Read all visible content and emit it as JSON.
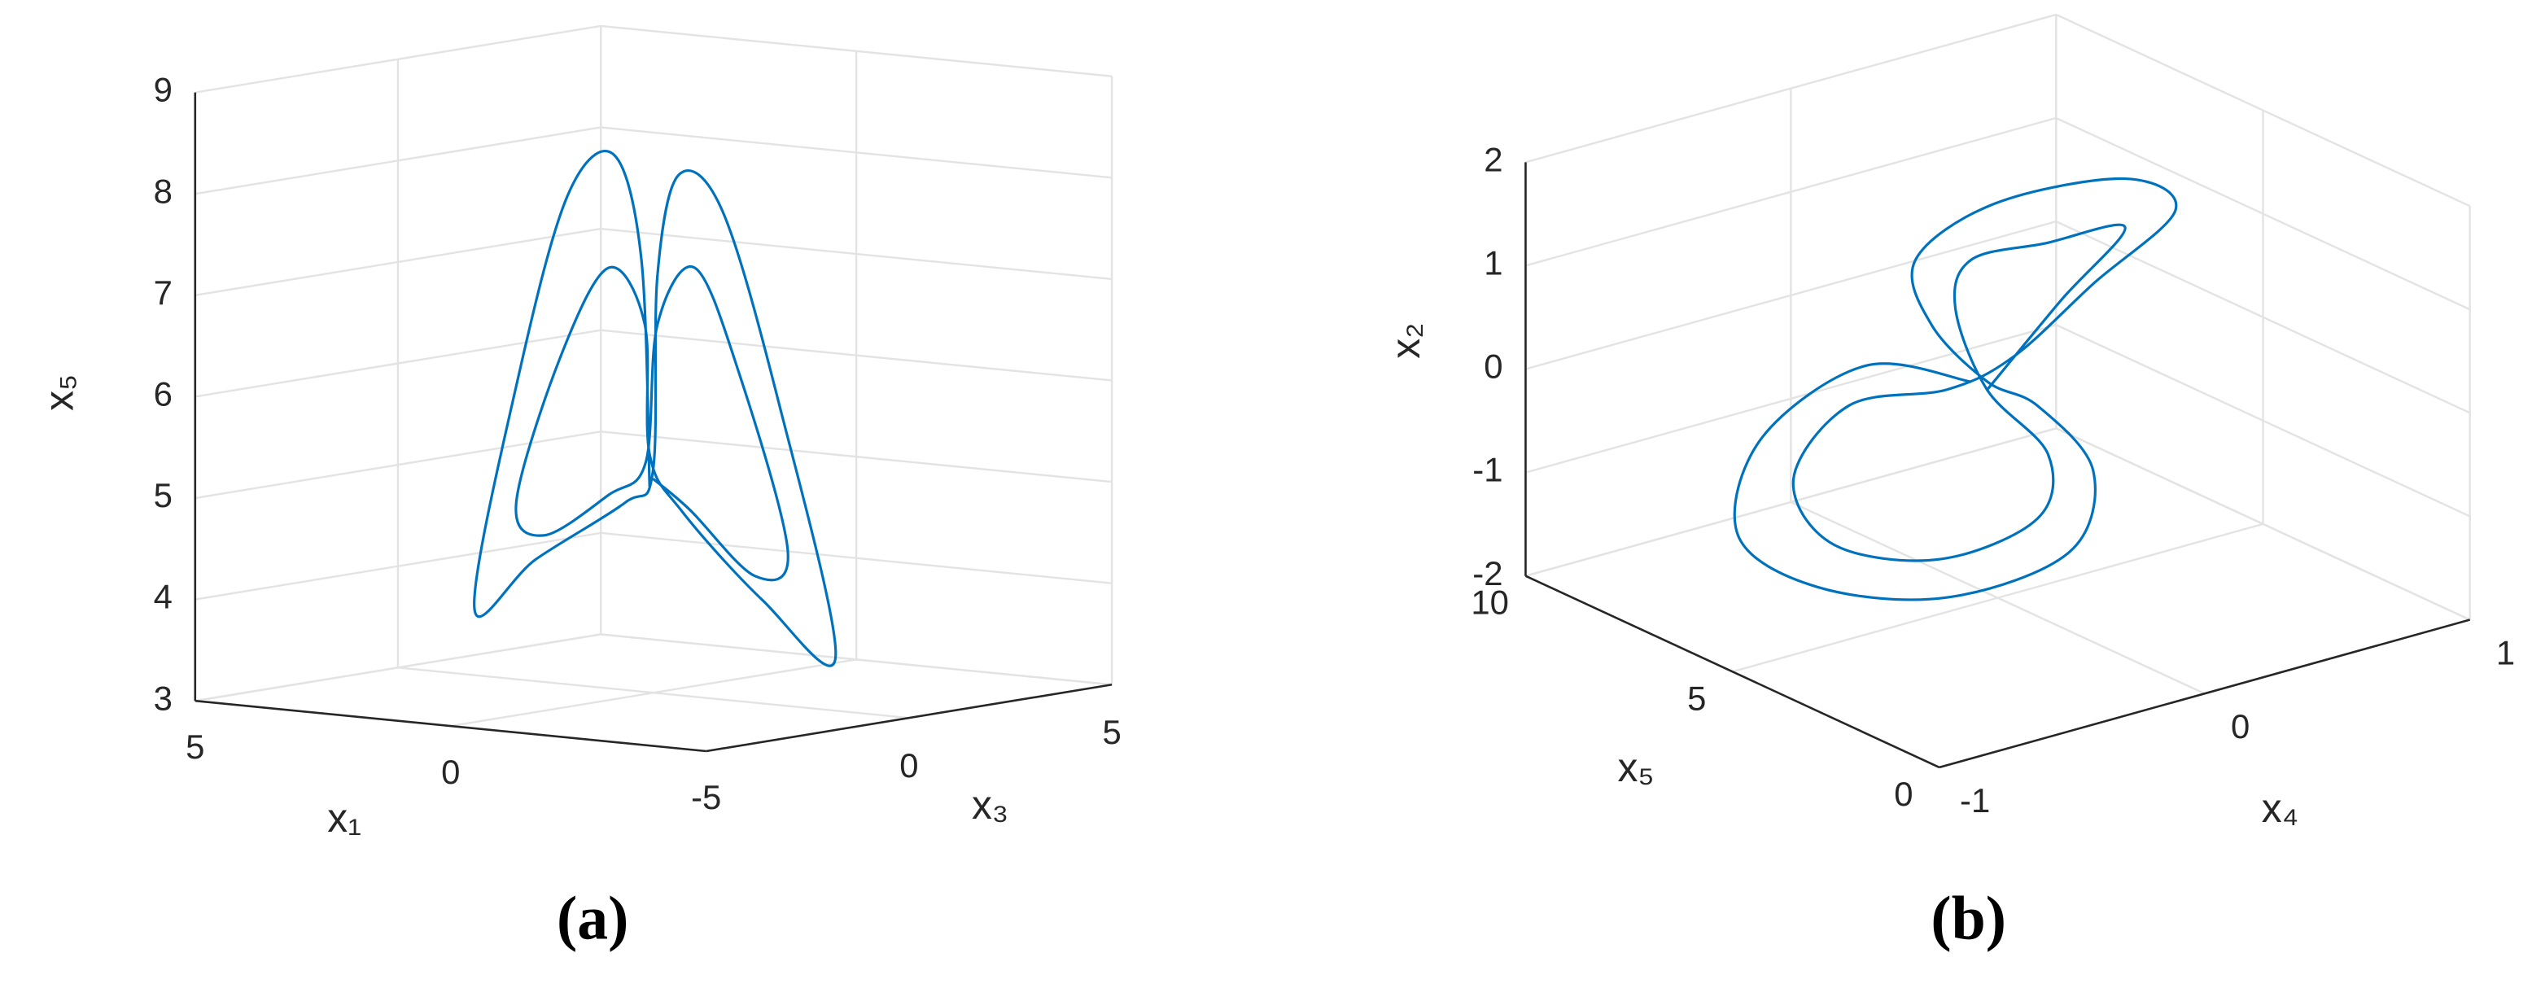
{
  "chart_data": [
    {
      "type": "line3d",
      "caption": "(a)",
      "xlabel": "x₁",
      "ylabel": "x₃",
      "zlabel": "x₅",
      "xlim": [
        -5,
        5
      ],
      "ylim": [
        -5,
        5
      ],
      "zlim": [
        3,
        9
      ],
      "xticks": [
        -5,
        0,
        5
      ],
      "yticks": [
        0,
        5
      ],
      "zticks": [
        3,
        4,
        5,
        6,
        7,
        8,
        9
      ],
      "grid": true,
      "color": "#0072bd",
      "x": [
        0.06,
        0.19,
        0.63,
        1.35,
        2.12,
        2.83,
        1.86,
        0.45,
        0.01,
        -0.06,
        -0.4,
        -1.09,
        -1.99,
        -2.88,
        -1.73,
        -0.45,
        0.06,
        0.14,
        0.71,
        1.47,
        2.17,
        1.73,
        0.71,
        0.12,
        -0.06,
        -0.65,
        -1.35,
        -2.12,
        -1.6,
        -0.58,
        0.01
      ],
      "y": [
        -0.02,
        -0.06,
        -0.19,
        -0.41,
        -0.64,
        -0.85,
        -0.56,
        -0.14,
        0.0,
        0.02,
        0.12,
        0.33,
        0.6,
        0.86,
        0.52,
        0.14,
        -0.02,
        -0.04,
        -0.21,
        -0.44,
        -0.65,
        -0.52,
        -0.21,
        -0.04,
        0.02,
        0.2,
        0.41,
        0.64,
        0.48,
        0.17,
        0.0
      ],
      "z": [
        5.03,
        7.27,
        8.29,
        7.87,
        6.09,
        3.75,
        4.26,
        4.86,
        5.19,
        7.11,
        8.12,
        7.78,
        5.89,
        3.44,
        3.96,
        4.8,
        5.35,
        6.63,
        7.17,
        6.27,
        4.81,
        4.5,
        4.93,
        5.27,
        6.63,
        7.21,
        6.19,
        4.46,
        4.2,
        4.82,
        5.11
      ]
    },
    {
      "type": "line3d",
      "caption": "(b)",
      "xlabel": "x₄",
      "ylabel": "x₅",
      "zlabel": "x₂",
      "xlim": [
        -1,
        1
      ],
      "ylim": [
        0,
        10
      ],
      "zlim": [
        -2,
        2
      ],
      "xticks": [
        -1,
        0,
        1
      ],
      "yticks": [
        0,
        5,
        10
      ],
      "zticks": [
        -2,
        -1,
        0,
        1,
        2
      ],
      "grid": true,
      "color": "#0072bd",
      "x": [
        -0.1,
        -0.5,
        -0.89,
        -0.98,
        -0.68,
        -0.19,
        0.27,
        0.36,
        0.15,
        -0.04,
        -0.25,
        -0.31,
        -0.01,
        0.48,
        0.67,
        0.36,
        0.06,
        -0.19,
        -0.56,
        -0.77,
        -0.62,
        -0.22,
        0.15,
        0.19,
        -0.04,
        -0.16,
        -0.1,
        0.18,
        0.48,
        0.24,
        -0.04
      ],
      "y": [
        5,
        5,
        5,
        5,
        5,
        5,
        5,
        5,
        5,
        5,
        5,
        5,
        5,
        5,
        5,
        5,
        5,
        5,
        5,
        5,
        5,
        5,
        5,
        5,
        5,
        5,
        5,
        5,
        5,
        5,
        5
      ],
      "z": [
        0.16,
        0.6,
        0.18,
        -0.69,
        -1.41,
        -1.86,
        -1.75,
        -1.03,
        -0.25,
        0.12,
        0.82,
        1.49,
        1.82,
        1.71,
        1.27,
        0.78,
        0.29,
        0.15,
        0.26,
        -0.3,
        -1.04,
        -1.47,
        -1.34,
        -0.75,
        0.04,
        0.92,
        1.34,
        1.3,
        1.24,
        0.71,
        0.04
      ]
    }
  ]
}
